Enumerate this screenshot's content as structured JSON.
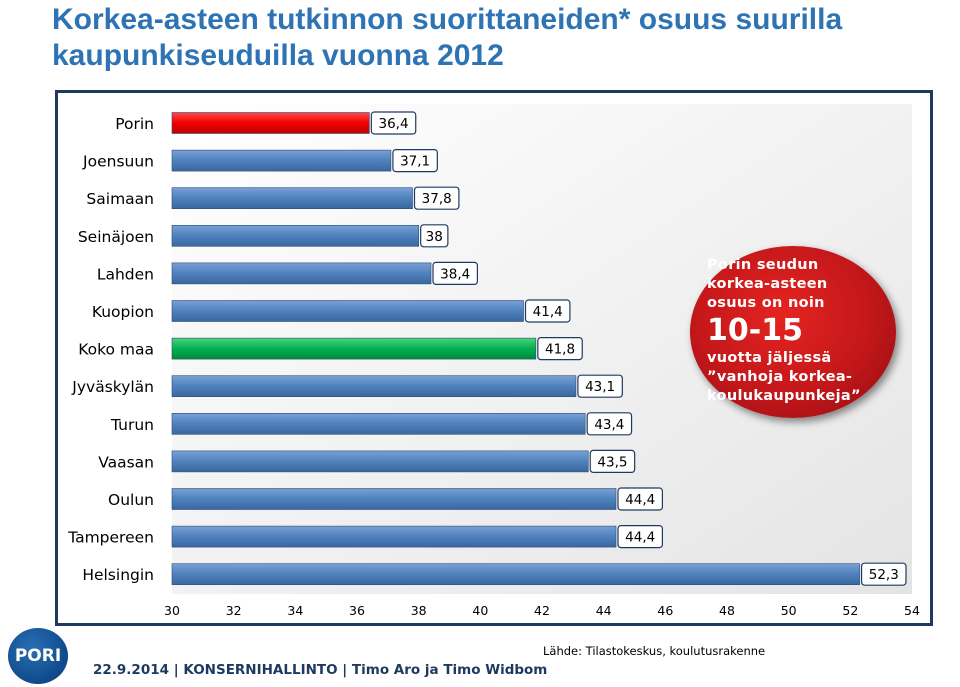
{
  "title": "Korkea-asteen tutkinnon suorittaneiden* osuus suurilla kaupunkiseuduilla vuonna 2012",
  "chart_data": {
    "type": "bar",
    "orientation": "horizontal",
    "categories": [
      "Porin",
      "Joensuun",
      "Saimaan",
      "Seinäjoen",
      "Lahden",
      "Kuopion",
      "Koko maa",
      "Jyväskylän",
      "Turun",
      "Vaasan",
      "Oulun",
      "Tampereen",
      "Helsingin"
    ],
    "values": [
      36.4,
      37.1,
      37.8,
      38,
      38.4,
      41.4,
      41.8,
      43.1,
      43.4,
      43.5,
      44.4,
      44.4,
      52.3
    ],
    "value_labels": [
      "36,4",
      "37,1",
      "37,8",
      "38",
      "38,4",
      "41,4",
      "41,8",
      "43,1",
      "43,4",
      "43,5",
      "44,4",
      "44,4",
      "52,3"
    ],
    "bar_colors": [
      "#ff0000",
      "#4f81bd",
      "#4f81bd",
      "#4f81bd",
      "#4f81bd",
      "#4f81bd",
      "#00b050",
      "#4f81bd",
      "#4f81bd",
      "#4f81bd",
      "#4f81bd",
      "#4f81bd",
      "#4f81bd"
    ],
    "xlim": [
      30,
      54
    ],
    "x_ticks": [
      "30",
      "32",
      "34",
      "36",
      "38",
      "40",
      "42",
      "44",
      "46",
      "48",
      "50",
      "52",
      "54"
    ],
    "grid": false
  },
  "callout": {
    "line1": "Porin seudun",
    "line2": "korkea-asteen",
    "line3": "osuus on noin",
    "big": "10-15",
    "line4": "vuotta jäljessä",
    "line5": "”vanhoja korkea-",
    "line6": "koulukaupunkeja”"
  },
  "footer": {
    "logo": "PORI",
    "date_line": "22.9.2014 | KONSERNIHALLINTO | Timo Aro ja Timo Widbom",
    "source": "Lähde: Tilastokeskus, koulutusrakenne"
  }
}
